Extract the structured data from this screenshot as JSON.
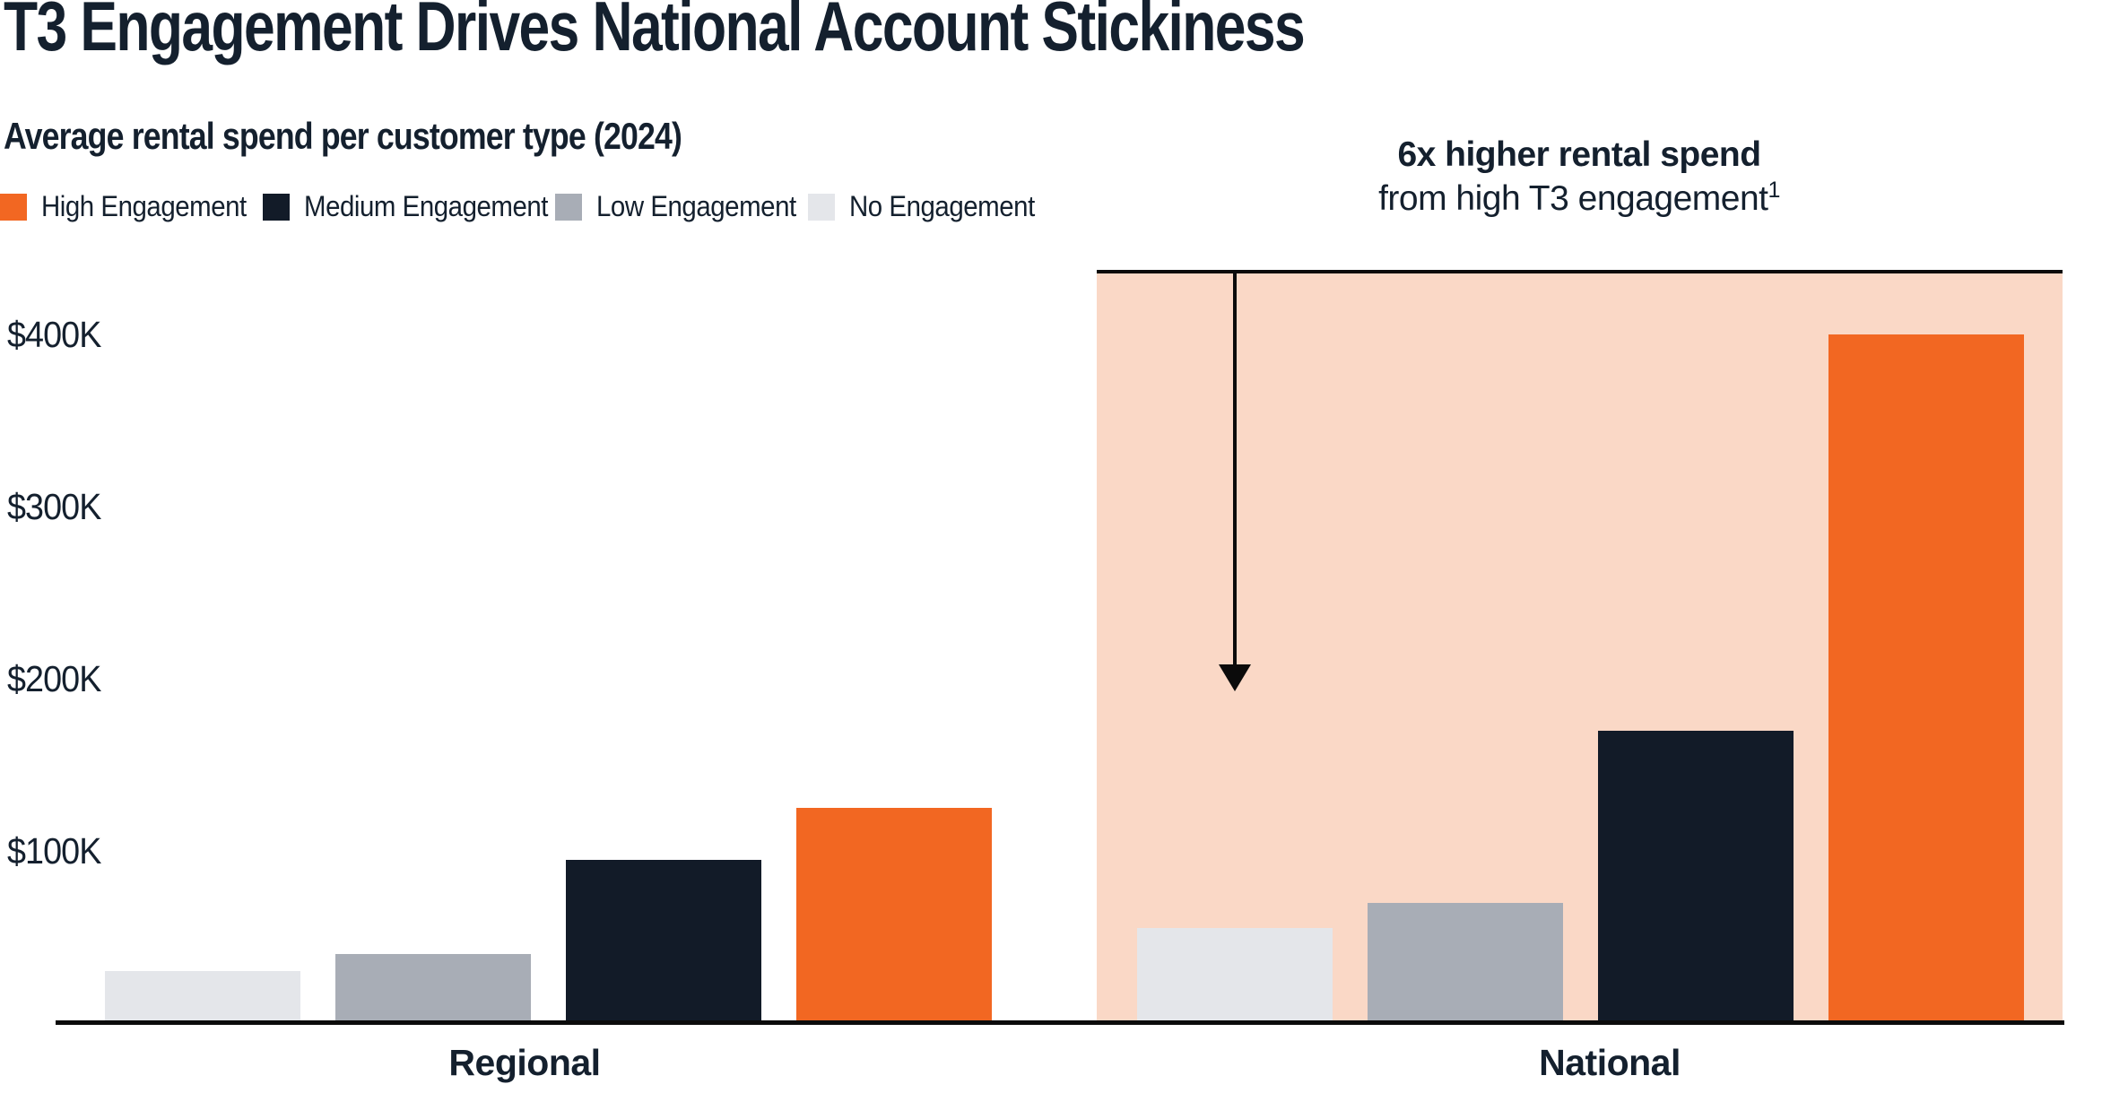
{
  "title": "T3 Engagement Drives National Account Stickiness",
  "subtitle": "Average rental spend per customer type (2024)",
  "legend": [
    {
      "label": "High Engagement",
      "color": "#F26722"
    },
    {
      "label": "Medium Engagement",
      "color": "#121B28"
    },
    {
      "label": "Low Engagement",
      "color": "#A8ADB6"
    },
    {
      "label": "No Engagement",
      "color": "#E4E6EA"
    }
  ],
  "annotation": {
    "headline": "6x higher rental spend",
    "subline": "from high T3 engagement",
    "footnote_marker": "1"
  },
  "y_axis": {
    "tick_labels": [
      "$400K",
      "$300K",
      "$200K",
      "$100K"
    ],
    "tick_values": [
      400,
      300,
      200,
      100
    ]
  },
  "chart_data": {
    "type": "bar",
    "title": "Average rental spend per customer type (2024)",
    "categories": [
      "Regional",
      "National"
    ],
    "series": [
      {
        "name": "No Engagement",
        "color": "#E4E6EA",
        "values": [
          30,
          55
        ]
      },
      {
        "name": "Low Engagement",
        "color": "#A8ADB6",
        "values": [
          40,
          70
        ]
      },
      {
        "name": "Medium Engagement",
        "color": "#121B28",
        "values": [
          95,
          170
        ]
      },
      {
        "name": "High Engagement",
        "color": "#F26722",
        "values": [
          125,
          400
        ]
      }
    ],
    "value_unit": "$K",
    "ylim": [
      0,
      430
    ],
    "grid": false,
    "legend_position": "top-left",
    "highlight": {
      "group": "National",
      "fill": "#FAD8C6",
      "label": "6x higher rental spend from high T3 engagement"
    }
  },
  "colors": {
    "text": "#14202E",
    "accent_orange": "#F26722",
    "navy": "#121B28",
    "gray": "#A8ADB6",
    "light_gray": "#E4E6EA",
    "highlight_peach": "#FAD8C6",
    "line_black": "#0B0B0B"
  }
}
